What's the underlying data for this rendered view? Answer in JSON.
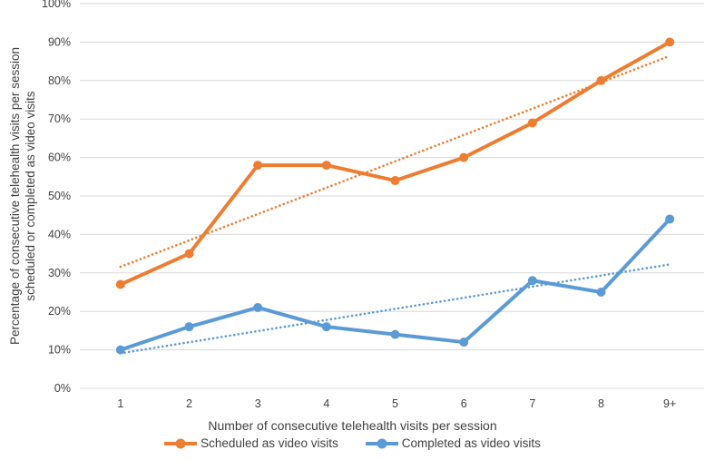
{
  "chart_data": {
    "type": "line",
    "title": "",
    "categories": [
      "1",
      "2",
      "3",
      "4",
      "5",
      "6",
      "7",
      "8",
      "9+"
    ],
    "series": [
      {
        "name": "Scheduled as video visits",
        "values": [
          27,
          35,
          58,
          58,
          54,
          60,
          69,
          80,
          90
        ],
        "color": "#ED7D31",
        "trendline": {
          "type": "linear",
          "start": 31.6,
          "end": 86.4
        }
      },
      {
        "name": "Completed as video visits",
        "values": [
          10,
          16,
          21,
          16,
          14,
          12,
          28,
          25,
          44
        ],
        "color": "#5B9BD5",
        "trendline": {
          "type": "linear",
          "start": 9.1,
          "end": 32.2
        }
      }
    ],
    "xlabel": "Number of consecutive telehealth visits per session",
    "ylabel_line1": "Percentage of consecutive telehealth visits per session",
    "ylabel_line2": "scheduled or completed as video visits",
    "y_ticks": [
      "0%",
      "10%",
      "20%",
      "30%",
      "40%",
      "50%",
      "60%",
      "70%",
      "80%",
      "90%",
      "100%"
    ],
    "ylim": [
      0,
      100
    ],
    "grid": "horizontal",
    "legend_position": "bottom",
    "gridline_color": "#D9D9D9",
    "text_color": "#404040",
    "background_color": "#FFFFFF"
  }
}
